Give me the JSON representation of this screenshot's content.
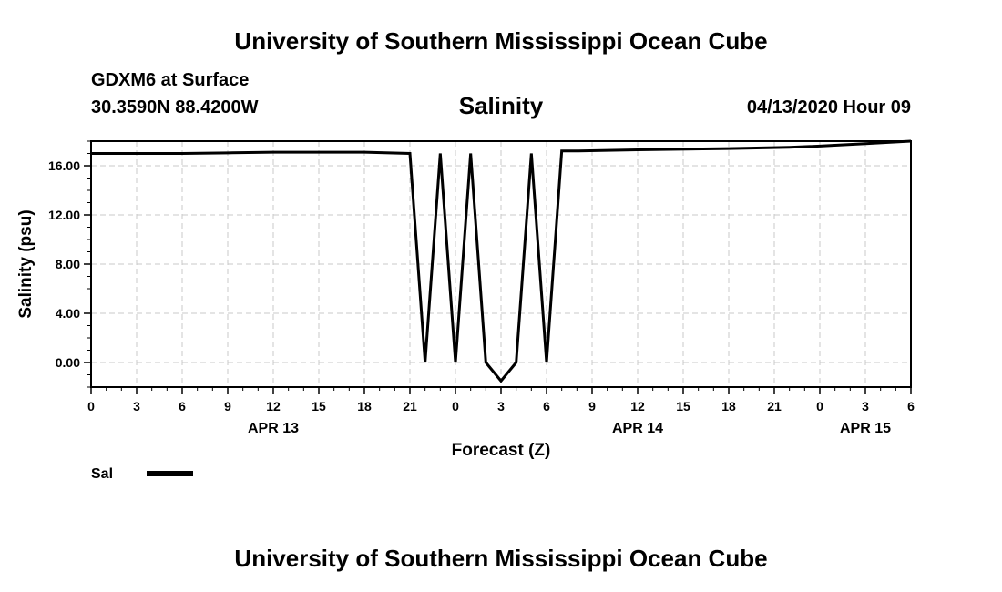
{
  "header": {
    "title_top": "University of Southern Mississippi Ocean Cube",
    "station": "GDXM6 at Surface",
    "coords": "30.3590N 88.4200W",
    "date": "04/13/2020 Hour 09",
    "title_bottom": "University of Southern Mississippi Ocean Cube"
  },
  "chart_data": {
    "type": "line",
    "title": "Salinity",
    "xlabel": "Forecast (Z)",
    "ylabel": "Salinity (psu)",
    "x_hours_range": [
      0,
      54
    ],
    "ylim": [
      -2,
      18
    ],
    "y_ticks": [
      "0.00",
      "4.00",
      "8.00",
      "12.00",
      "16.00"
    ],
    "y_tick_values": [
      0,
      4,
      8,
      12,
      16
    ],
    "x_tick_labels": [
      "0",
      "3",
      "6",
      "9",
      "12",
      "15",
      "18",
      "21",
      "0",
      "3",
      "6",
      "9",
      "12",
      "15",
      "18",
      "21",
      "0",
      "3",
      "6"
    ],
    "day_labels": [
      {
        "label": "APR 13",
        "hour": 12
      },
      {
        "label": "APR 14",
        "hour": 36
      },
      {
        "label": "APR 15",
        "hour": 51
      }
    ],
    "grid": true,
    "series": [
      {
        "name": "Sal",
        "color": "#000000",
        "x": [
          0,
          3,
          6,
          9,
          12,
          15,
          18,
          21,
          22,
          23,
          24,
          25,
          26,
          27,
          28,
          29,
          30,
          31,
          32,
          36,
          42,
          46,
          48,
          51,
          54
        ],
        "values": [
          17.0,
          17.0,
          17.0,
          17.05,
          17.1,
          17.1,
          17.1,
          17.0,
          0.0,
          17.0,
          0.0,
          17.0,
          0.0,
          -1.5,
          0.0,
          17.0,
          0.0,
          17.2,
          17.2,
          17.3,
          17.4,
          17.5,
          17.6,
          17.8,
          18.0
        ]
      }
    ],
    "legend": {
      "position": "bottom-left",
      "label": "Sal"
    }
  }
}
